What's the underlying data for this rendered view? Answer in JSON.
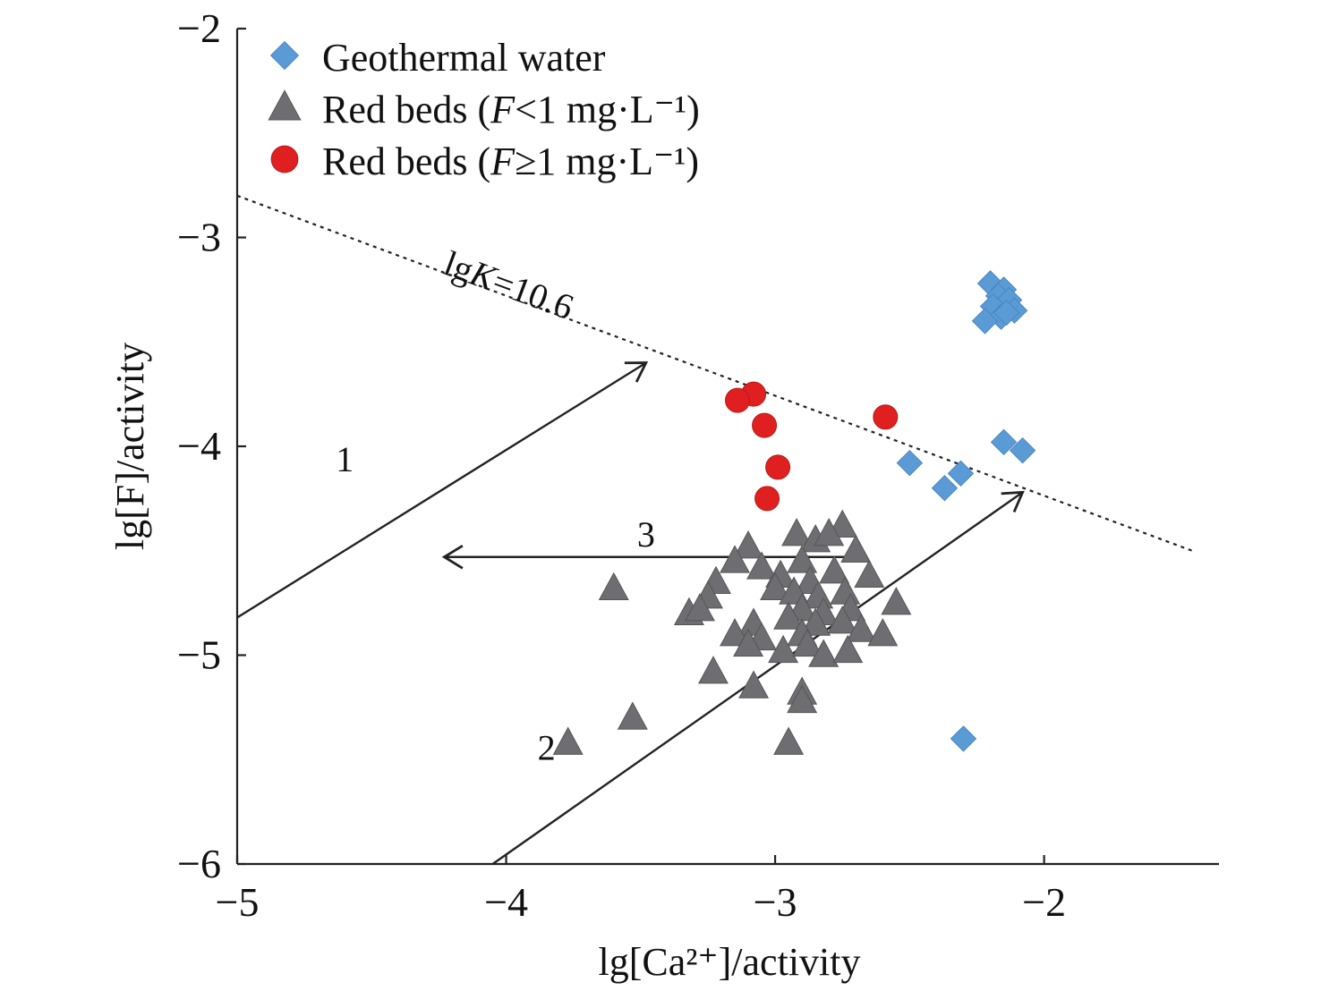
{
  "chart_data": {
    "type": "scatter",
    "xlabel": "lg[Ca²⁺]/activity",
    "ylabel": "lg[F]/activity",
    "xlim": [
      -5,
      -1.35
    ],
    "ylim": [
      -6,
      -2
    ],
    "xticks": [
      -5,
      -4,
      -3,
      -2
    ],
    "yticks": [
      -6,
      -5,
      -4,
      -3,
      -2
    ],
    "xtick_labels": [
      "−5",
      "−4",
      "−3",
      "−2"
    ],
    "ytick_labels": [
      "−6",
      "−5",
      "−4",
      "−3",
      "−2"
    ],
    "legend_position": "top-left",
    "legend": [
      {
        "name": "Geothermal water",
        "marker": "diamond",
        "color": "#5b9bd5"
      },
      {
        "name": "Red beds",
        "cond": "<1 mg·L⁻¹",
        "marker": "triangle",
        "color": "#6e6e72"
      },
      {
        "name": "Red beds",
        "cond": "≥1 mg·L⁻¹",
        "marker": "circle",
        "color": "#e02020"
      }
    ],
    "series": [
      {
        "name": "Geothermal water",
        "marker": "diamond",
        "color": "#5b9bd5",
        "points": [
          [
            -2.2,
            -3.22
          ],
          [
            -2.15,
            -3.25
          ],
          [
            -2.17,
            -3.28
          ],
          [
            -2.13,
            -3.3
          ],
          [
            -2.19,
            -3.33
          ],
          [
            -2.11,
            -3.35
          ],
          [
            -2.16,
            -3.38
          ],
          [
            -2.22,
            -3.4
          ],
          [
            -2.14,
            -3.36
          ],
          [
            -2.15,
            -3.98
          ],
          [
            -2.08,
            -4.02
          ],
          [
            -2.5,
            -4.08
          ],
          [
            -2.31,
            -4.13
          ],
          [
            -2.37,
            -4.2
          ],
          [
            -2.3,
            -5.4
          ]
        ]
      },
      {
        "name": "Red beds (F<1 mg·L⁻¹)",
        "marker": "triangle",
        "color": "#6e6e72",
        "points": [
          [
            -3.1,
            -4.48
          ],
          [
            -3.15,
            -4.55
          ],
          [
            -3.05,
            -4.58
          ],
          [
            -2.92,
            -4.42
          ],
          [
            -2.85,
            -4.45
          ],
          [
            -2.75,
            -4.38
          ],
          [
            -2.8,
            -4.42
          ],
          [
            -2.9,
            -4.55
          ],
          [
            -2.7,
            -4.5
          ],
          [
            -2.98,
            -4.62
          ],
          [
            -2.87,
            -4.65
          ],
          [
            -2.78,
            -4.6
          ],
          [
            -2.65,
            -4.62
          ],
          [
            -3.0,
            -4.68
          ],
          [
            -2.93,
            -4.7
          ],
          [
            -2.84,
            -4.72
          ],
          [
            -2.74,
            -4.7
          ],
          [
            -2.55,
            -4.75
          ],
          [
            -2.9,
            -4.78
          ],
          [
            -2.82,
            -4.8
          ],
          [
            -2.72,
            -4.78
          ],
          [
            -2.95,
            -4.82
          ],
          [
            -2.85,
            -4.85
          ],
          [
            -2.75,
            -4.84
          ],
          [
            -2.9,
            -4.9
          ],
          [
            -2.68,
            -4.88
          ],
          [
            -2.6,
            -4.9
          ],
          [
            -3.22,
            -4.65
          ],
          [
            -3.25,
            -4.72
          ],
          [
            -3.32,
            -4.8
          ],
          [
            -3.28,
            -4.78
          ],
          [
            -3.08,
            -4.85
          ],
          [
            -3.15,
            -4.9
          ],
          [
            -3.05,
            -4.92
          ],
          [
            -3.1,
            -4.95
          ],
          [
            -2.97,
            -4.98
          ],
          [
            -2.88,
            -4.95
          ],
          [
            -2.82,
            -5.0
          ],
          [
            -2.73,
            -4.98
          ],
          [
            -3.6,
            -4.68
          ],
          [
            -3.23,
            -5.08
          ],
          [
            -3.08,
            -5.15
          ],
          [
            -2.9,
            -5.18
          ],
          [
            -2.9,
            -5.22
          ],
          [
            -3.53,
            -5.3
          ],
          [
            -3.77,
            -5.42
          ],
          [
            -2.95,
            -5.42
          ]
        ]
      },
      {
        "name": "Red beds (F≥1 mg·L⁻¹)",
        "marker": "circle",
        "color": "#e02020",
        "points": [
          [
            -3.08,
            -3.75
          ],
          [
            -3.14,
            -3.78
          ],
          [
            -3.04,
            -3.9
          ],
          [
            -2.99,
            -4.1
          ],
          [
            -3.03,
            -4.25
          ],
          [
            -2.59,
            -3.86
          ]
        ]
      }
    ],
    "reference_line": {
      "label_pre": "lg",
      "label_var": "K",
      "label_post": "=10.6",
      "style": "dotted",
      "points": [
        [
          -5,
          -2.8
        ],
        [
          -1.45,
          -4.5
        ]
      ]
    },
    "arrows": [
      {
        "label": "1",
        "from": [
          -5,
          -4.82
        ],
        "to": [
          -3.48,
          -3.6
        ]
      },
      {
        "label": "2",
        "from": [
          -4.05,
          -6.0
        ],
        "to": [
          -2.08,
          -4.22
        ]
      },
      {
        "label": "3",
        "from": [
          -2.67,
          -4.53
        ],
        "to": [
          -4.23,
          -4.53
        ]
      }
    ]
  }
}
